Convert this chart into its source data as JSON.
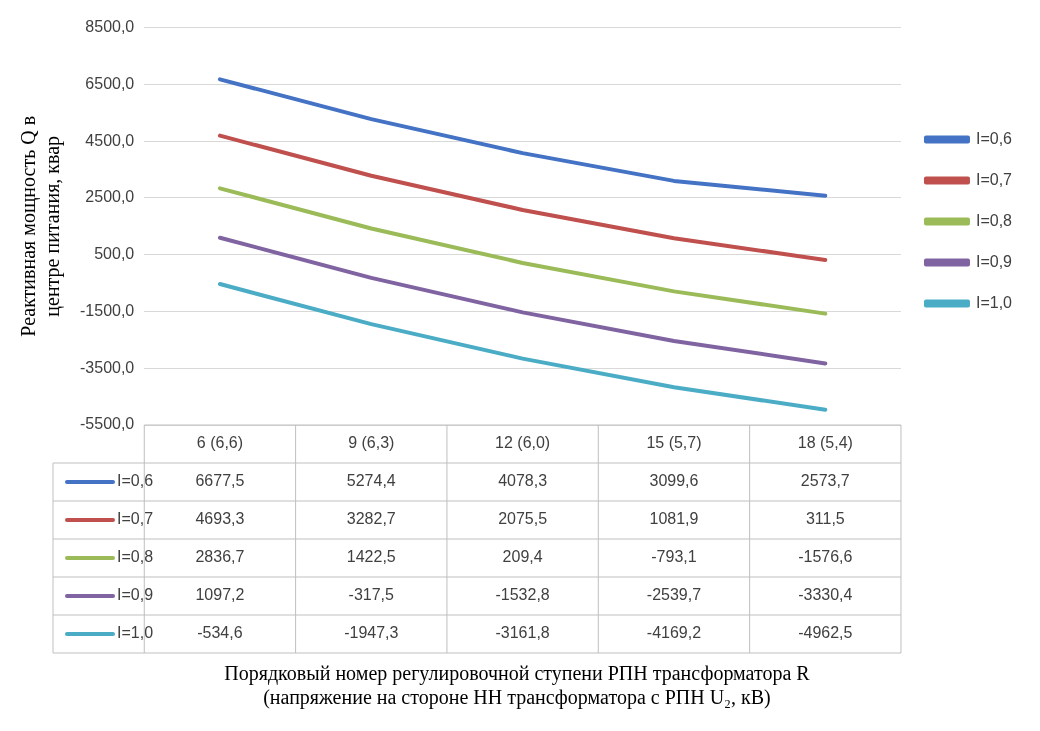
{
  "chart_data": {
    "type": "line",
    "annotations": [
      "Порядковый номер регулировочной ступени РПН трансформатора R\n(напряжение на стороне НН трансформатора с РПН U₂, кВ)"
    ],
    "ylabel": "Реактивная мощность Q в\nцентре питания, квар",
    "categories": [
      "6 (6,6)",
      "9 (6,3)",
      "12 (6,0)",
      "15 (5,7)",
      "18 (5,4)"
    ],
    "series": [
      {
        "name": "I=0,6",
        "color": "#4472c4",
        "values": [
          6677.5,
          5274.4,
          4078.3,
          3099.6,
          2573.7
        ],
        "value_labels": [
          "6677,5",
          "5274,4",
          "4078,3",
          "3099,6",
          "2573,7"
        ]
      },
      {
        "name": "I=0,7",
        "color": "#c0504d",
        "values": [
          4693.3,
          3282.7,
          2075.5,
          1081.9,
          311.5
        ],
        "value_labels": [
          "4693,3",
          "3282,7",
          "2075,5",
          "1081,9",
          "311,5"
        ]
      },
      {
        "name": "I=0,8",
        "color": "#9bbb59",
        "values": [
          2836.7,
          1422.5,
          209.4,
          -793.1,
          -1576.6
        ],
        "value_labels": [
          "2836,7",
          "1422,5",
          "209,4",
          "-793,1",
          "-1576,6"
        ]
      },
      {
        "name": "I=0,9",
        "color": "#8064a2",
        "values": [
          1097.2,
          -317.5,
          -1532.8,
          -2539.7,
          -3330.4
        ],
        "value_labels": [
          "1097,2",
          "-317,5",
          "-1532,8",
          "-2539,7",
          "-3330,4"
        ]
      },
      {
        "name": "I=1,0",
        "color": "#4bacc6",
        "values": [
          -534.6,
          -1947.3,
          -3161.8,
          -4169.2,
          -4962.5
        ],
        "value_labels": [
          "-534,6",
          "-1947,3",
          "-3161,8",
          "-4169,2",
          "-4962,5"
        ]
      }
    ],
    "ylim": [
      -5500,
      8500
    ],
    "yticks": [
      {
        "value": -5500,
        "label": "-5500,0"
      },
      {
        "value": -3500,
        "label": "-3500,0"
      },
      {
        "value": -1500,
        "label": "-1500,0"
      },
      {
        "value": 500,
        "label": "500,0"
      },
      {
        "value": 2500,
        "label": "2500,0"
      },
      {
        "value": 4500,
        "label": "4500,0"
      },
      {
        "value": 6500,
        "label": "6500,0"
      },
      {
        "value": 8500,
        "label": "8500,0"
      }
    ],
    "grid": "y",
    "legend": "right"
  }
}
